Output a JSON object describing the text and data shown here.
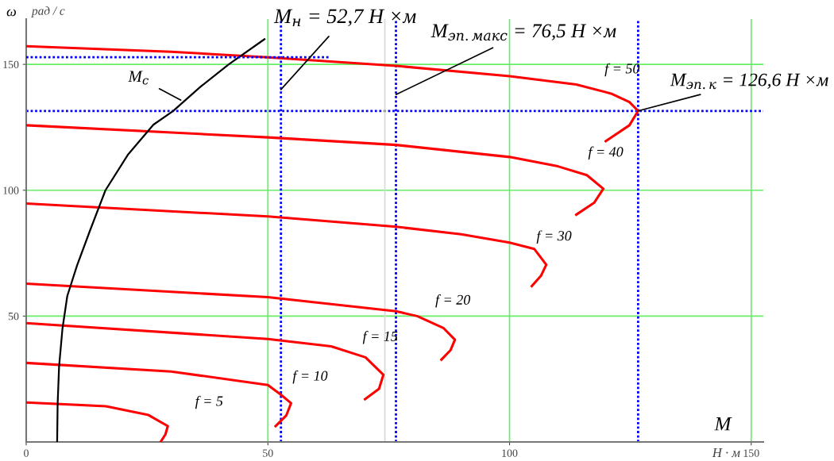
{
  "chart_data": {
    "type": "line",
    "ylabel": "ω",
    "xlabel": "M",
    "xlim": [
      0,
      152.5
    ],
    "ylim": [
      0,
      168
    ],
    "xticks": [
      0,
      50,
      100,
      150
    ],
    "yticks": [
      50,
      100,
      150
    ],
    "grid": true,
    "legend": false,
    "marker": "none",
    "series": [
      {
        "color": "#ff0000",
        "x": [
          0,
          30,
          50,
          76.5,
          100,
          113.8,
          121,
          124.8,
          126.6,
          124.8,
          119.9
        ],
        "values": [
          157.2,
          155,
          152.8,
          149.4,
          145.3,
          142,
          138.4,
          135,
          131.5,
          125.8,
          119.5
        ]
      },
      {
        "color": "#ff0000",
        "x": [
          0,
          50,
          76.5,
          100,
          110,
          116,
          119.4,
          117.5,
          113.8
        ],
        "values": [
          125.8,
          121,
          118,
          113.2,
          109.5,
          106,
          100.6,
          95,
          90.3
        ]
      },
      {
        "color": "#ff0000",
        "x": [
          0,
          50,
          76.5,
          90,
          100,
          105.1,
          107.6,
          106.5,
          104.6
        ],
        "values": [
          94.7,
          89.6,
          85.5,
          82.5,
          79.2,
          76.7,
          70.4,
          66,
          61.9
        ]
      },
      {
        "color": "#ff0000",
        "x": [
          0,
          50,
          76.5,
          80.9,
          86.3,
          88.7,
          87.8,
          85.9
        ],
        "values": [
          62.9,
          57.5,
          51.9,
          50,
          45.3,
          40.6,
          36.5,
          32.7
        ]
      },
      {
        "color": "#ff0000",
        "x": [
          0,
          50,
          63.1,
          70.2,
          73.9,
          73,
          70.1
        ],
        "values": [
          47.2,
          40.9,
          38,
          33.6,
          26.7,
          21.1,
          17
        ]
      },
      {
        "color": "#ff0000",
        "x": [
          0,
          30,
          50,
          52.6,
          54.8,
          53.8,
          51.6
        ],
        "values": [
          31.4,
          28,
          22.6,
          18.9,
          15.4,
          10.5,
          6.3
        ]
      },
      {
        "color": "#ff0000",
        "x": [
          0,
          16.5,
          25.3,
          29.3,
          28.8,
          27.8
        ],
        "values": [
          15.7,
          14.2,
          10.7,
          6.3,
          3,
          0
        ]
      },
      {
        "color": "#000000",
        "x": [
          6.4,
          6.5,
          6.8,
          7.5,
          8.5,
          10.5,
          13.2,
          16.4,
          21,
          26.3,
          30.4,
          36,
          41.9,
          49.3
        ],
        "values": [
          0,
          15,
          30,
          45,
          58,
          70,
          84,
          100,
          114,
          126,
          131.5,
          141,
          150,
          160
        ]
      },
      {
        "color": "#0000ff",
        "line_style": "dotted",
        "x": [
          0,
          63
        ],
        "values": [
          152.8,
          152.8
        ]
      }
    ],
    "ref_lines": [
      {
        "axis": "x",
        "value": 52.7,
        "color": "#0000ff",
        "line_style": "dotted"
      },
      {
        "axis": "x",
        "value": 76.5,
        "color": "#0000ff",
        "line_style": "dotted"
      },
      {
        "axis": "x",
        "value": 126.6,
        "color": "#0000ff",
        "line_style": "dotted"
      },
      {
        "axis": "y",
        "value": 131.5,
        "color": "#0000ff",
        "line_style": "dotted"
      },
      {
        "axis": "x",
        "value": 74.2,
        "color": "#d8d8d8",
        "line_style": "solid"
      }
    ],
    "annotations": [
      {
        "text": "M$_{с}$",
        "x": 32,
        "y": 135.8
      },
      {
        "text": "M$_{н}$ = 52,7 H ×м",
        "x": 52.7,
        "y": 140
      },
      {
        "text": "M$_{эп.макс}$ = 76,5 H ×м",
        "x": 76.5,
        "y": 138
      },
      {
        "text": "M$_{эп.к}$ = 126,6 H ×м",
        "x": 126.6,
        "y": 131.5
      },
      {
        "text": "f = 50",
        "x": 121,
        "y": 138.4
      },
      {
        "text": "f = 40",
        "x": 119.4,
        "y": 100.6
      },
      {
        "text": "f = 30",
        "x": 105.1,
        "y": 76.7
      },
      {
        "text": "f = 20",
        "x": 86.3,
        "y": 45.3
      },
      {
        "text": "f = 15",
        "x": 73.9,
        "y": 26.7
      },
      {
        "text": "f = 10",
        "x": 54.8,
        "y": 15.4
      },
      {
        "text": "f = 5",
        "x": 29.3,
        "y": 6.3
      },
      "H · м",
      "рад / с"
    ]
  }
}
